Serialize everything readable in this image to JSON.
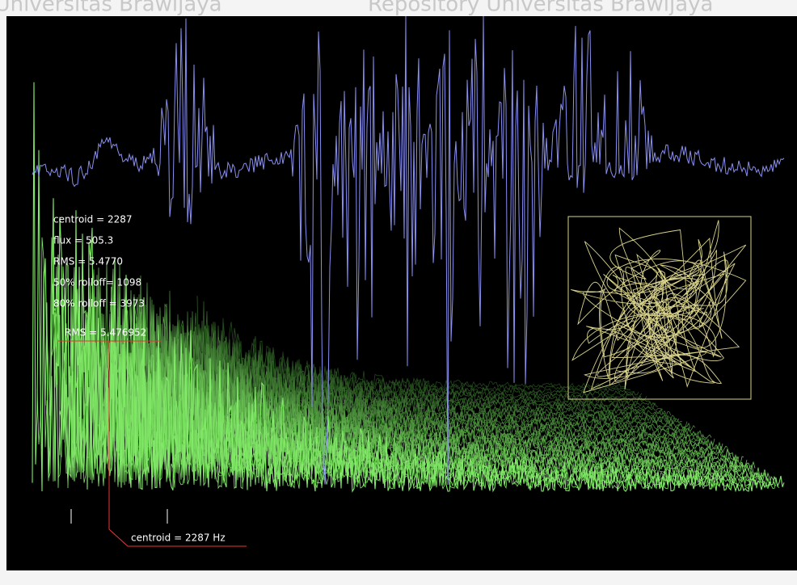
{
  "watermark": [
    "y Universitas Brawijaya",
    "Repository Universitas Brawijaya"
  ],
  "stats": [
    "centroid = 2287",
    "flux = 505.3",
    "RMS = 5.4770",
    "50% rolloff= 1098",
    "80% rolloff = 3973"
  ],
  "rms_label": "RMS = 5.476952",
  "centroid_label": "centroid = 2287 Hz"
}
